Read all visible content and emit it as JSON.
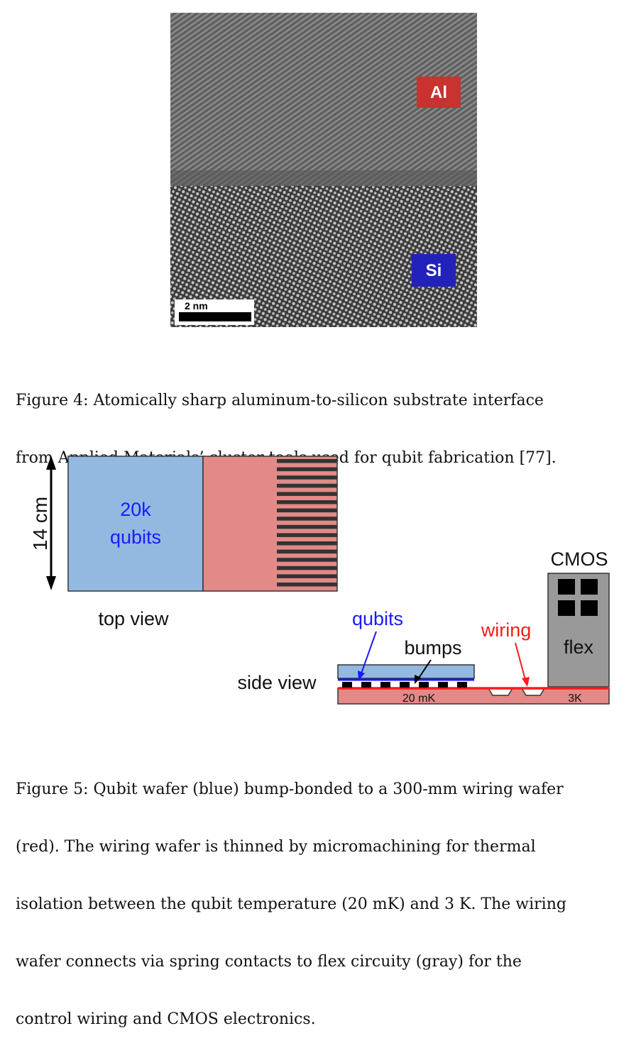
{
  "figure4": {
    "labels": {
      "al": "Al",
      "si": "Si"
    },
    "scale_bar": "2 nm",
    "caption_lines": [
      "Figure 4: Atomically sharp aluminum-to-silicon substrate interface",
      "from Applied Materials’ cluster tools used for qubit fabrication [77]."
    ]
  },
  "figure5": {
    "dimension_label": "14 cm",
    "qubits_block": [
      "20k",
      "qubits"
    ],
    "top_view_label": "top view",
    "side_view_label": "side view",
    "cmos_label": "CMOS",
    "flex_label": "flex",
    "qubits_label": "qubits",
    "bumps_label": "bumps",
    "wiring_label": "wiring",
    "temp_cold": "20 mK",
    "temp_warm": "3K",
    "colors": {
      "qubit_blue": "#93b9e1",
      "wiring_red": "#e38a88",
      "wire_line": "#ff1a1a",
      "flex_gray": "#999999",
      "label_blue": "#1a1aff"
    },
    "caption_lines": [
      "Figure 5: Qubit wafer (blue) bump-bonded to a 300-mm wiring wafer",
      "(red). The wiring wafer is thinned by micromachining for thermal",
      "isolation between the qubit temperature (20 mK) and 3 K. The wiring",
      "wafer connects via spring contacts to flex circuity (gray) for the",
      "control wiring and CMOS electronics."
    ]
  }
}
